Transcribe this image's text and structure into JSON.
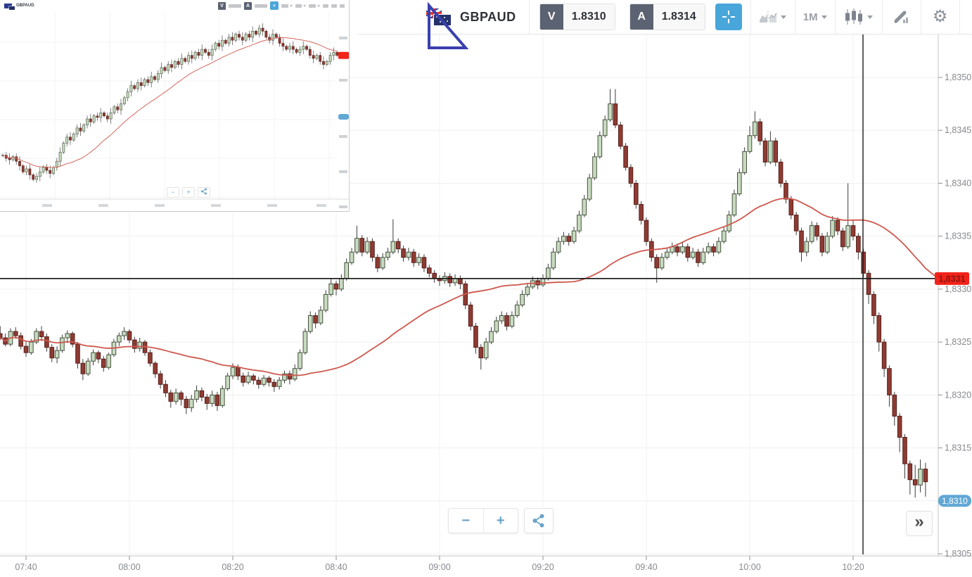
{
  "toolbar": {
    "symbol": "GBPAUD",
    "bid_label": "V",
    "bid_value": "1.8310",
    "ask_label": "A",
    "ask_value": "1.8314",
    "timeframe": "1M",
    "icons": [
      "flag-gbp-aud",
      "crosshair",
      "chart-type",
      "timeframe",
      "candle-style",
      "marker",
      "gear",
      "collapse"
    ]
  },
  "controls": {
    "zoom_out": "−",
    "zoom_in": "+",
    "expand": "»",
    "share_icon": "share",
    "clock_icon": "clock"
  },
  "colors": {
    "accent_blue": "#49a6da",
    "badge_gray": "#5b6271",
    "bull_fill": "#c8dbc0",
    "bull_stroke": "#43503b",
    "bear_fill": "#8e3b33",
    "bear_stroke": "#571f19",
    "ma_red": "#ce584e",
    "grid": "#efefef",
    "axis_line": "#c4c4c4",
    "axis_text": "#85898e",
    "hline_black": "#141414",
    "red_label_bg": "#f2231a",
    "red_label_text": "#8c1410",
    "blue_label_bg": "#61a8d5",
    "triangle_blue": "#3a40ae"
  },
  "chart_data": {
    "type": "candlestick",
    "symbol": "GBPAUD",
    "interval": "1M",
    "start_time": "07:35",
    "minutes_per_candle": 1,
    "price_base": 1.83,
    "pip_size": 0.0001,
    "ylim": [
      1.8305,
      1.835
    ],
    "grid": true,
    "price_ticks": [
      "1,8305",
      "1,8310",
      "1,8315",
      "1,8320",
      "1,8325",
      "1,8330",
      "1,8335",
      "1,8340",
      "1,8345",
      "1,8350"
    ],
    "price_tick_pips": [
      5,
      10,
      15,
      20,
      25,
      30,
      35,
      40,
      45,
      50
    ],
    "time_ticks": [
      "07:40",
      "08:00",
      "08:20",
      "08:40",
      "09:00",
      "09:20",
      "09:40",
      "10:00",
      "10:20"
    ],
    "ma_overlay": {
      "type": "moving-average",
      "period": 40,
      "color": "#ce584e"
    },
    "annotations": {
      "horizontal_line_price": 1.8331,
      "horizontal_line_label": "1,8331",
      "vertical_line_time": "10:22",
      "current_price": 1.831,
      "current_price_label": "1,8310",
      "triangle_drawing": "right-triangle"
    },
    "candles_ohlc_pips": [
      [
        25.8,
        26.5,
        25.2,
        25.4
      ],
      [
        25.4,
        25.8,
        24.6,
        24.8
      ],
      [
        24.8,
        26.3,
        24.6,
        26.0
      ],
      [
        26.0,
        26.4,
        25.3,
        25.6
      ],
      [
        25.6,
        25.9,
        24.3,
        24.6
      ],
      [
        24.6,
        25.0,
        23.6,
        24.0
      ],
      [
        24.0,
        25.3,
        23.8,
        25.0
      ],
      [
        25.0,
        26.3,
        24.8,
        26.0
      ],
      [
        26.0,
        26.5,
        25.1,
        25.5
      ],
      [
        25.5,
        25.8,
        24.1,
        24.5
      ],
      [
        24.5,
        24.8,
        23.1,
        23.5
      ],
      [
        23.5,
        24.6,
        23.0,
        24.2
      ],
      [
        24.2,
        25.7,
        24.0,
        25.4
      ],
      [
        25.4,
        26.1,
        24.9,
        25.8
      ],
      [
        25.8,
        26.0,
        24.5,
        24.8
      ],
      [
        24.8,
        25.0,
        22.5,
        23.0
      ],
      [
        23.0,
        23.4,
        21.4,
        22.0
      ],
      [
        22.0,
        23.5,
        21.8,
        23.2
      ],
      [
        23.2,
        24.3,
        22.8,
        24.0
      ],
      [
        24.0,
        24.2,
        23.0,
        23.4
      ],
      [
        23.4,
        23.7,
        22.2,
        22.6
      ],
      [
        22.6,
        24.0,
        22.4,
        23.8
      ],
      [
        23.8,
        25.3,
        23.6,
        25.0
      ],
      [
        25.0,
        25.9,
        24.6,
        25.6
      ],
      [
        25.6,
        26.4,
        25.2,
        26.0
      ],
      [
        26.0,
        26.2,
        24.9,
        25.2
      ],
      [
        25.2,
        25.5,
        24.0,
        24.4
      ],
      [
        24.4,
        25.4,
        24.1,
        25.0
      ],
      [
        25.0,
        25.2,
        23.7,
        24.0
      ],
      [
        24.0,
        24.3,
        22.7,
        23.0
      ],
      [
        23.0,
        23.2,
        21.6,
        22.0
      ],
      [
        22.0,
        22.3,
        20.6,
        21.0
      ],
      [
        21.0,
        21.4,
        19.8,
        20.2
      ],
      [
        20.2,
        20.5,
        18.8,
        19.4
      ],
      [
        19.4,
        20.6,
        19.1,
        20.2
      ],
      [
        20.2,
        20.4,
        19.0,
        19.6
      ],
      [
        19.6,
        19.9,
        18.2,
        18.8
      ],
      [
        18.8,
        20.0,
        18.4,
        19.6
      ],
      [
        19.6,
        20.9,
        19.3,
        20.4
      ],
      [
        20.4,
        20.7,
        19.4,
        19.8
      ],
      [
        19.8,
        20.1,
        18.6,
        19.2
      ],
      [
        19.2,
        20.4,
        18.9,
        20.0
      ],
      [
        20.0,
        20.3,
        18.5,
        19.0
      ],
      [
        19.0,
        20.9,
        18.8,
        20.6
      ],
      [
        20.6,
        22.1,
        20.4,
        21.8
      ],
      [
        21.8,
        23.0,
        21.5,
        22.6
      ],
      [
        22.6,
        22.9,
        21.4,
        21.8
      ],
      [
        21.8,
        22.1,
        20.8,
        21.2
      ],
      [
        21.2,
        22.2,
        21.0,
        21.8
      ],
      [
        21.8,
        22.0,
        21.0,
        21.4
      ],
      [
        21.4,
        21.7,
        20.6,
        21.0
      ],
      [
        21.0,
        21.9,
        20.8,
        21.6
      ],
      [
        21.6,
        21.8,
        20.8,
        21.2
      ],
      [
        21.2,
        21.5,
        20.3,
        20.8
      ],
      [
        20.8,
        21.7,
        20.5,
        21.4
      ],
      [
        21.4,
        22.3,
        21.1,
        22.0
      ],
      [
        22.0,
        22.3,
        21.0,
        21.5
      ],
      [
        21.5,
        22.9,
        21.3,
        22.5
      ],
      [
        22.5,
        24.3,
        22.3,
        24.0
      ],
      [
        24.0,
        26.3,
        23.8,
        26.0
      ],
      [
        26.0,
        27.9,
        25.8,
        27.5
      ],
      [
        27.5,
        27.8,
        26.3,
        26.8
      ],
      [
        26.8,
        28.4,
        26.6,
        28.0
      ],
      [
        28.0,
        29.9,
        27.8,
        29.5
      ],
      [
        29.5,
        31.0,
        29.3,
        30.5
      ],
      [
        30.5,
        30.8,
        29.4,
        30.0
      ],
      [
        30.0,
        31.4,
        29.8,
        31.0
      ],
      [
        31.0,
        32.9,
        30.8,
        32.5
      ],
      [
        32.5,
        33.9,
        32.3,
        33.5
      ],
      [
        33.5,
        36.0,
        33.3,
        34.8
      ],
      [
        34.8,
        35.1,
        33.1,
        33.5
      ],
      [
        33.5,
        34.9,
        33.3,
        34.5
      ],
      [
        34.5,
        34.8,
        32.6,
        33.0
      ],
      [
        33.0,
        33.3,
        31.6,
        32.0
      ],
      [
        32.0,
        33.4,
        31.8,
        33.0
      ],
      [
        33.0,
        33.9,
        32.7,
        33.5
      ],
      [
        33.5,
        36.6,
        33.3,
        34.5
      ],
      [
        34.5,
        34.8,
        33.4,
        33.8
      ],
      [
        33.8,
        34.1,
        32.6,
        33.0
      ],
      [
        33.0,
        33.9,
        32.7,
        33.5
      ],
      [
        33.5,
        33.8,
        32.1,
        32.5
      ],
      [
        32.5,
        33.4,
        32.2,
        33.0
      ],
      [
        33.0,
        33.3,
        31.6,
        32.0
      ],
      [
        32.0,
        32.3,
        31.1,
        31.5
      ],
      [
        31.5,
        31.8,
        30.6,
        31.0
      ],
      [
        31.0,
        31.3,
        30.3,
        30.8
      ],
      [
        30.8,
        31.6,
        30.5,
        31.2
      ],
      [
        31.2,
        31.5,
        30.2,
        30.6
      ],
      [
        30.6,
        31.4,
        30.3,
        31.0
      ],
      [
        31.0,
        31.3,
        30.0,
        30.5
      ],
      [
        30.5,
        30.8,
        28.1,
        28.5
      ],
      [
        28.5,
        28.8,
        26.1,
        26.5
      ],
      [
        26.5,
        26.8,
        23.9,
        24.5
      ],
      [
        24.5,
        24.8,
        22.4,
        23.5
      ],
      [
        23.5,
        25.4,
        23.3,
        25.0
      ],
      [
        25.0,
        26.4,
        24.8,
        26.0
      ],
      [
        26.0,
        27.4,
        25.8,
        27.0
      ],
      [
        27.0,
        27.9,
        26.7,
        27.5
      ],
      [
        27.5,
        27.8,
        26.1,
        26.5
      ],
      [
        26.5,
        27.9,
        26.3,
        27.5
      ],
      [
        27.5,
        28.9,
        27.3,
        28.5
      ],
      [
        28.5,
        29.9,
        28.3,
        29.5
      ],
      [
        29.5,
        30.6,
        29.3,
        30.2
      ],
      [
        30.2,
        31.2,
        30.0,
        30.8
      ],
      [
        30.8,
        31.1,
        30.0,
        30.4
      ],
      [
        30.4,
        31.4,
        30.2,
        31.0
      ],
      [
        31.0,
        32.4,
        30.8,
        32.0
      ],
      [
        32.0,
        33.9,
        31.8,
        33.5
      ],
      [
        33.5,
        34.9,
        33.3,
        34.5
      ],
      [
        34.5,
        35.4,
        34.2,
        35.0
      ],
      [
        35.0,
        35.3,
        34.1,
        34.5
      ],
      [
        34.5,
        35.9,
        34.3,
        35.5
      ],
      [
        35.5,
        37.4,
        35.3,
        37.0
      ],
      [
        37.0,
        38.9,
        36.8,
        38.5
      ],
      [
        38.5,
        40.9,
        38.3,
        40.5
      ],
      [
        40.5,
        42.9,
        40.3,
        42.5
      ],
      [
        42.5,
        44.9,
        42.3,
        44.5
      ],
      [
        44.5,
        46.4,
        44.3,
        46.0
      ],
      [
        46.0,
        48.9,
        45.8,
        47.5
      ],
      [
        47.5,
        48.9,
        45.2,
        45.5
      ],
      [
        45.5,
        45.8,
        43.2,
        43.5
      ],
      [
        43.5,
        43.8,
        41.2,
        41.5
      ],
      [
        41.5,
        41.8,
        39.6,
        40.0
      ],
      [
        40.0,
        40.3,
        37.6,
        38.0
      ],
      [
        38.0,
        38.3,
        36.1,
        36.5
      ],
      [
        36.5,
        36.8,
        34.1,
        34.5
      ],
      [
        34.5,
        34.8,
        32.6,
        33.0
      ],
      [
        33.0,
        33.3,
        30.6,
        32.0
      ],
      [
        32.0,
        33.4,
        31.8,
        33.0
      ],
      [
        33.0,
        33.9,
        32.8,
        33.5
      ],
      [
        33.5,
        34.4,
        33.3,
        34.0
      ],
      [
        34.0,
        34.3,
        33.1,
        33.5
      ],
      [
        33.5,
        34.4,
        33.3,
        34.0
      ],
      [
        34.0,
        34.3,
        32.6,
        33.0
      ],
      [
        33.0,
        33.9,
        32.8,
        33.5
      ],
      [
        33.5,
        33.8,
        32.1,
        32.5
      ],
      [
        32.5,
        33.9,
        32.3,
        33.5
      ],
      [
        33.5,
        34.4,
        33.3,
        34.0
      ],
      [
        34.0,
        34.3,
        33.1,
        33.5
      ],
      [
        33.5,
        34.9,
        33.3,
        34.5
      ],
      [
        34.5,
        35.9,
        34.3,
        35.5
      ],
      [
        35.5,
        37.4,
        35.3,
        37.0
      ],
      [
        37.0,
        39.4,
        36.8,
        39.0
      ],
      [
        39.0,
        41.4,
        38.8,
        41.0
      ],
      [
        41.0,
        43.4,
        40.8,
        43.0
      ],
      [
        43.0,
        45.4,
        42.8,
        44.5
      ],
      [
        44.5,
        46.8,
        44.2,
        45.8
      ],
      [
        45.8,
        46.1,
        43.6,
        44.0
      ],
      [
        44.0,
        44.3,
        41.6,
        42.0
      ],
      [
        42.0,
        44.9,
        41.8,
        44.0
      ],
      [
        44.0,
        44.3,
        41.6,
        42.0
      ],
      [
        42.0,
        42.3,
        39.6,
        40.0
      ],
      [
        40.0,
        40.3,
        38.1,
        38.5
      ],
      [
        38.5,
        38.8,
        36.6,
        37.0
      ],
      [
        37.0,
        37.3,
        35.1,
        35.5
      ],
      [
        35.5,
        35.8,
        32.6,
        33.5
      ],
      [
        33.5,
        34.9,
        33.1,
        34.5
      ],
      [
        34.5,
        36.4,
        34.3,
        36.0
      ],
      [
        36.0,
        36.3,
        34.6,
        35.0
      ],
      [
        35.0,
        35.3,
        33.1,
        33.5
      ],
      [
        33.5,
        35.4,
        33.3,
        35.0
      ],
      [
        35.0,
        36.9,
        34.8,
        36.5
      ],
      [
        36.5,
        36.8,
        35.1,
        35.5
      ],
      [
        35.5,
        35.8,
        33.6,
        34.0
      ],
      [
        34.0,
        40.0,
        33.8,
        36.0
      ],
      [
        36.0,
        36.5,
        34.6,
        35.0
      ],
      [
        35.0,
        35.3,
        32.8,
        33.5
      ],
      [
        33.5,
        33.8,
        31.1,
        31.5
      ],
      [
        31.5,
        31.8,
        28.6,
        29.5
      ],
      [
        29.5,
        29.8,
        26.7,
        27.5
      ],
      [
        27.5,
        27.8,
        24.1,
        25.0
      ],
      [
        25.0,
        25.3,
        21.7,
        22.5
      ],
      [
        22.5,
        22.8,
        18.9,
        20.0
      ],
      [
        20.0,
        20.3,
        17.1,
        18.0
      ],
      [
        18.0,
        18.3,
        14.6,
        16.0
      ],
      [
        16.0,
        16.3,
        12.1,
        13.5
      ],
      [
        13.5,
        13.8,
        10.6,
        12.0
      ],
      [
        12.0,
        13.4,
        10.3,
        11.5
      ],
      [
        11.5,
        13.9,
        10.8,
        13.0
      ],
      [
        13.0,
        13.6,
        10.4,
        11.8
      ]
    ]
  },
  "inset_chart_data": {
    "type": "candlestick",
    "symbol": "GBPAUD",
    "bid_badge": "V",
    "ask_badge": "A",
    "ma_color": "#d4685f",
    "closes_pips": [
      22,
      21,
      20.5,
      21.5,
      20,
      18.5,
      16.5,
      17.5,
      15.5,
      14,
      15,
      16.5,
      18,
      17,
      16,
      18,
      20,
      23,
      26,
      28,
      27,
      29,
      31,
      30,
      32,
      34,
      33,
      35,
      34.5,
      36,
      35,
      34,
      36,
      38,
      37,
      39,
      41,
      43,
      45,
      44,
      46,
      45,
      47,
      46,
      48,
      47,
      49,
      51,
      50,
      52,
      51,
      53,
      52,
      54,
      53,
      55,
      54,
      56,
      55,
      57,
      56,
      55,
      57,
      59,
      58,
      60,
      59,
      61,
      60,
      62,
      61,
      60,
      62,
      61,
      63,
      62,
      64,
      63,
      61,
      60,
      62,
      61,
      59,
      58,
      57,
      58,
      57,
      56,
      57,
      58,
      57,
      55,
      54,
      55,
      53,
      52,
      53,
      55,
      56,
      55
    ]
  }
}
